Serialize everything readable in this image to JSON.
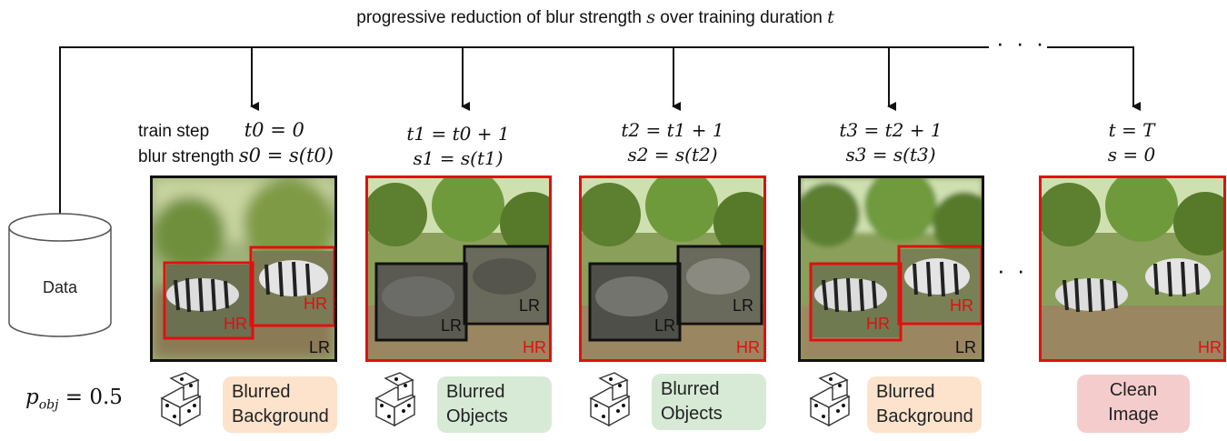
{
  "header": {
    "title_prefix": "progressive reduction of blur strength",
    "title_s": "s",
    "title_mid": "over training duration",
    "title_t": "t",
    "top_ellipsis": "· · ·"
  },
  "datastore": {
    "label": "Data"
  },
  "p_obj": {
    "sym": "p",
    "sub": "obj",
    "value": "= 0.5"
  },
  "labels": {
    "hr": "HR",
    "lr": "LR"
  },
  "steps": [
    {
      "line1_prefix": "train step",
      "line1": "t0 = 0",
      "line2_prefix": "blur strength",
      "line2": "s0 = s(t0)",
      "method": "Blurred Background",
      "method_l1": "Blurred",
      "method_l2": "Background",
      "color": "#fde3cc"
    },
    {
      "line1": "t1 = t0 + 1",
      "line2": "s1 = s(t1)",
      "method_l1": "Blurred",
      "method_l2": "Objects",
      "color": "#d6ead6"
    },
    {
      "line1": "t2 = t1 + 1",
      "line2": "s2 = s(t2)",
      "method_l1": "Blurred",
      "method_l2": "Objects",
      "color": "#d6ead6"
    },
    {
      "line1": "t3 = t2 + 1",
      "line2": "s3 = s(t3)",
      "method_l1": "Blurred",
      "method_l2": "Background",
      "color": "#fde3cc"
    },
    {
      "line1": "t = T",
      "line2": "s = 0",
      "method_l1": "Clean",
      "method_l2": "Image",
      "color": "#f5cccc"
    }
  ],
  "mid_ellipsis": "· · ·"
}
